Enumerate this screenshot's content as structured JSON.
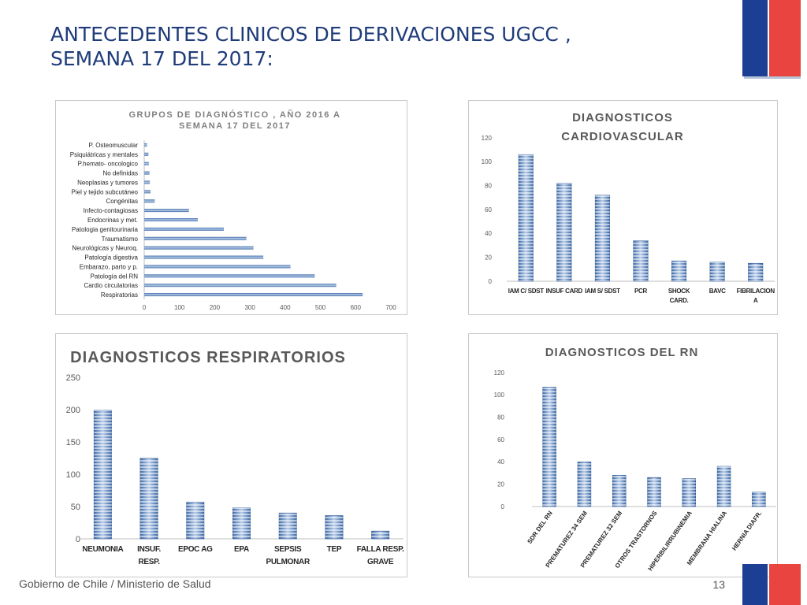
{
  "slide": {
    "title_line1": "ANTECEDENTES CLINICOS DE DERIVACIONES UGCC ,",
    "title_line2": "SEMANA 17 DEL 2017:",
    "footer": "Gobierno de Chile / Ministerio de Salud",
    "page_number": "13"
  },
  "colors": {
    "title": "#1f3c7a",
    "bar": "#4f81bd",
    "flag_blue": "#1c3f94",
    "flag_red": "#e9443f"
  },
  "chart_data": [
    {
      "id": "grupos",
      "type": "bar",
      "orientation": "horizontal",
      "title_lines": [
        "GRUPOS DE DIAGNÓSTICO , AÑO 2016 A",
        "SEMANA 17 DEL 2017"
      ],
      "categories": [
        "P. Osteomuscular",
        "Psiquiátricas y mentales",
        "P.hemato- oncologico",
        "No definidas",
        "Neoplasias y tumores",
        "Piel y tejido subcutáneo",
        "Congénitas",
        "Infecto-contagiosas",
        "Endocrinas y met.",
        "Patologia genitourinaria",
        "Traumatismo",
        "Neurológicas y Neuroq.",
        "Patología digestiva",
        "Embarazo, parto y p.",
        "Patología del RN",
        "Cardio circulatorias",
        "Respiratorias"
      ],
      "values": [
        8,
        12,
        13,
        15,
        16,
        18,
        30,
        127,
        152,
        226,
        290,
        310,
        338,
        415,
        484,
        545,
        620
      ],
      "xlim": [
        0,
        700
      ],
      "ticks": [
        "0",
        "100",
        "200",
        "300",
        "400",
        "500",
        "600",
        "700"
      ]
    },
    {
      "id": "cardio",
      "type": "bar",
      "title_lines": [
        "DIAGNOSTICOS",
        "CARDIOVASCULAR"
      ],
      "categories": [
        [
          "IAM C/ SDST"
        ],
        [
          "INSUF CARD"
        ],
        [
          "IAM S/ SDST"
        ],
        [
          "PCR"
        ],
        [
          "SHOCK",
          "CARD."
        ],
        [
          "BAVC"
        ],
        [
          "FIBRILACION",
          "A"
        ]
      ],
      "values": [
        106,
        82,
        72,
        34,
        17,
        16,
        15
      ],
      "ylim": [
        0,
        120
      ],
      "ticks": [
        "0",
        "20",
        "40",
        "60",
        "80",
        "100",
        "120"
      ]
    },
    {
      "id": "resp",
      "type": "bar",
      "title_lines": [
        "DIAGNOSTICOS RESPIRATORIOS"
      ],
      "categories": [
        [
          "NEUMONIA"
        ],
        [
          "INSUF.",
          "RESP."
        ],
        [
          "EPOC AG"
        ],
        [
          "EPA"
        ],
        [
          "SEPSIS",
          "PULMONAR"
        ],
        [
          "TEP"
        ],
        [
          "FALLA RESP.",
          "GRAVE"
        ]
      ],
      "values": [
        199,
        125,
        57,
        48,
        40,
        36,
        12
      ],
      "ylim": [
        0,
        250
      ],
      "ticks": [
        "0",
        "50",
        "100",
        "150",
        "200",
        "250"
      ]
    },
    {
      "id": "rn",
      "type": "bar",
      "title_lines": [
        "DIAGNOSTICOS DEL RN"
      ],
      "categories": [
        [
          "SDR DEL RN"
        ],
        [
          "PREMATUREZ 34 SEM"
        ],
        [
          "PREMATUREZ 32 SEM"
        ],
        [
          "OTROS TRASTORNOS"
        ],
        [
          "HIPERBILIRRUBINEMIA"
        ],
        [
          "MEMBRANA HIALINA"
        ],
        [
          "HERNIA DIAFR."
        ]
      ],
      "values": [
        107,
        40,
        28,
        26,
        25,
        36,
        13
      ],
      "ylim": [
        0,
        120
      ],
      "ticks": [
        "0",
        "20",
        "40",
        "60",
        "80",
        "100",
        "120"
      ]
    }
  ]
}
